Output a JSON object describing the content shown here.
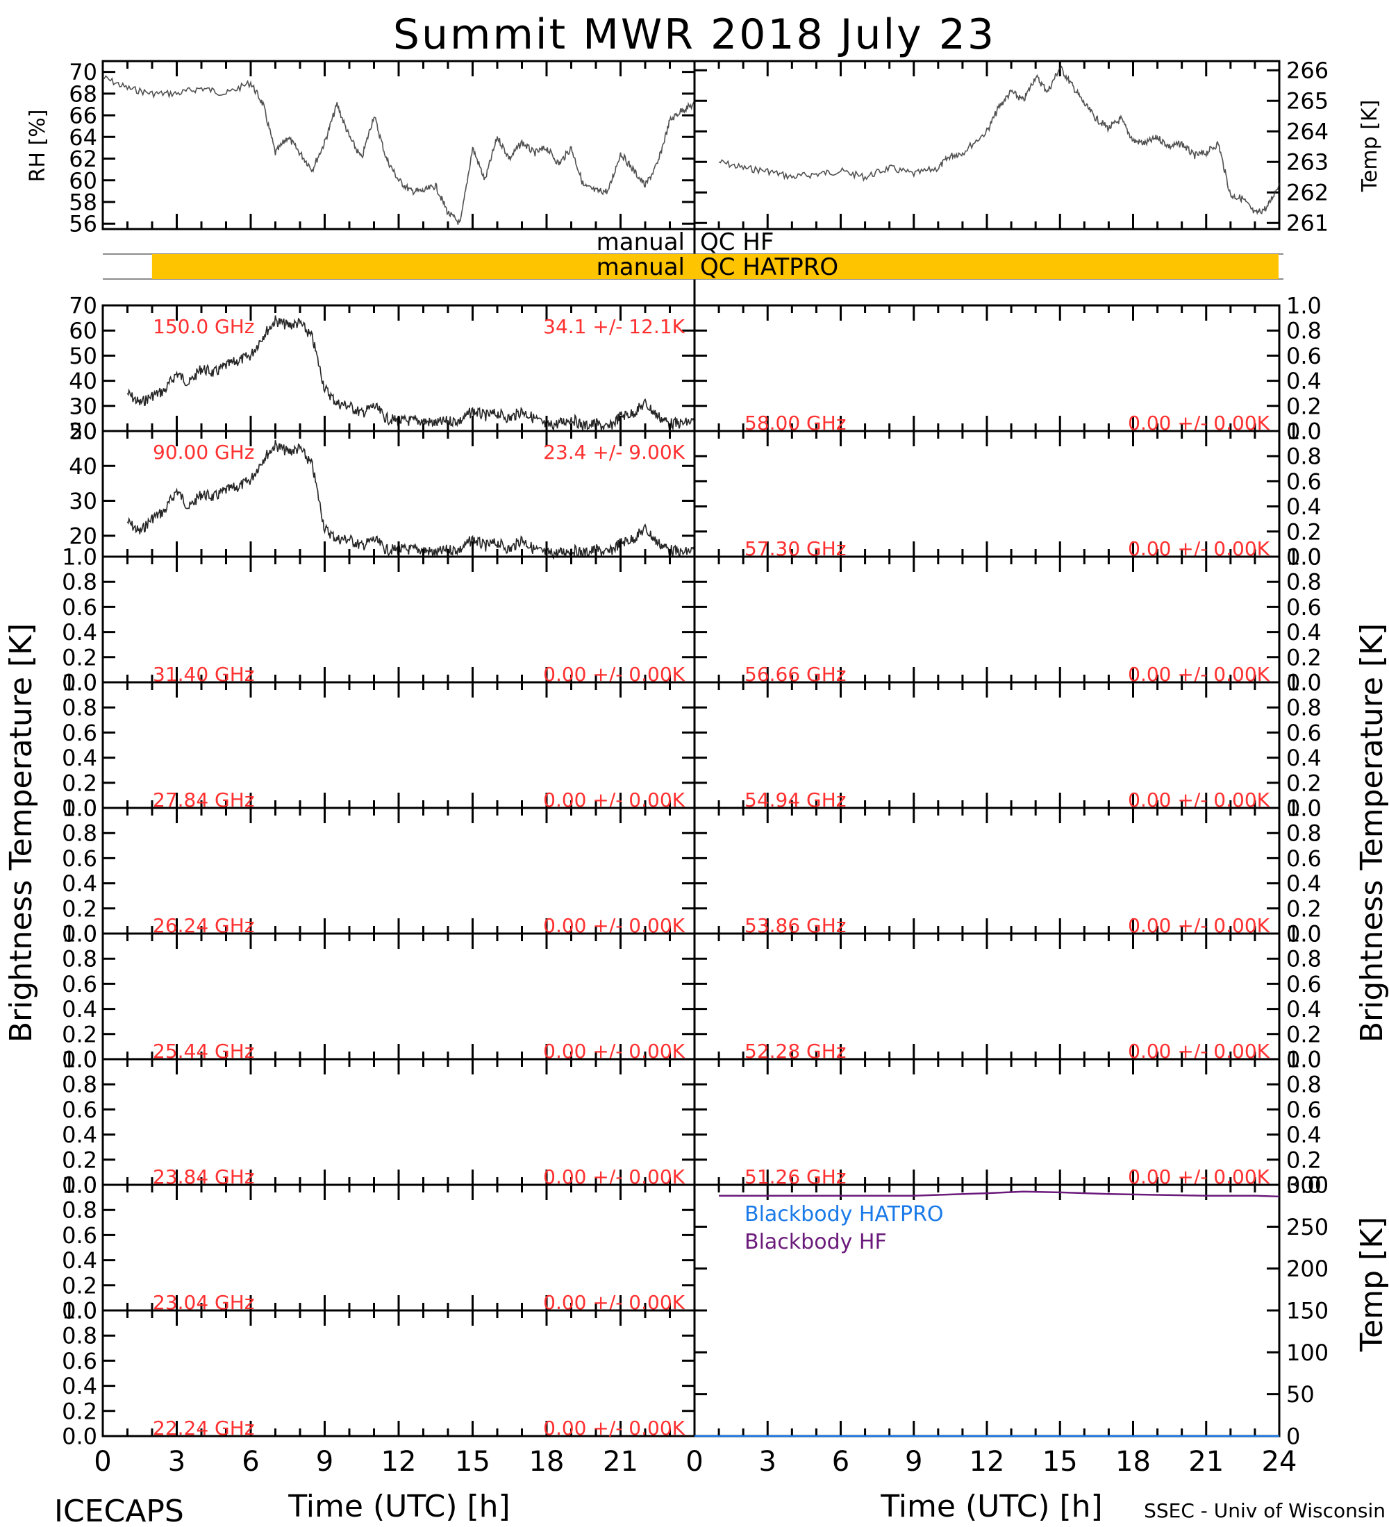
{
  "title": "Summit MWR 2018 July 23",
  "footer": {
    "left": "ICECAPS",
    "right": "SSEC - Univ of Wisconsin",
    "xlabel": "Time (UTC) [h]"
  },
  "left_ylabel": "Brightness Temperature [K]",
  "right_ylabel": "Brightness Temperature [K]",
  "qc": {
    "rows": [
      {
        "left": "manual",
        "right": "QC HF",
        "bar_color": null
      },
      {
        "left": "manual",
        "right": "QC HATPRO",
        "bar_color": "#ffc400"
      }
    ],
    "bar_start_hour": 1.0,
    "bar_end_hour": 23.9
  },
  "colors": {
    "annotation": "#ff3030",
    "data": "#000000",
    "blackbody_hatpro": "#1a7ae8",
    "blackbody_hf": "#6a1a7a",
    "qc_bar": "#ffc400"
  },
  "chart_data": [
    {
      "type": "line",
      "panel": "RH",
      "ylabel": "RH [%]",
      "ylim": [
        55.5,
        71
      ],
      "yticks": [
        "56",
        "58",
        "60",
        "62",
        "64",
        "66",
        "68",
        "70"
      ],
      "x": [
        0,
        1,
        2,
        3,
        4,
        5,
        6,
        6.5,
        7,
        7.5,
        8,
        8.5,
        9,
        9.5,
        10,
        10.5,
        11,
        11.5,
        12,
        12.5,
        13,
        13.5,
        14,
        14.5,
        15,
        15.5,
        16,
        16.5,
        17,
        17.5,
        18,
        18.5,
        19,
        19.5,
        20,
        20.5,
        21,
        21.5,
        22,
        22.5,
        23,
        23.5,
        24
      ],
      "y": [
        69.5,
        68.5,
        68,
        68,
        68.5,
        68,
        69,
        67,
        62.5,
        64,
        62.5,
        61,
        63.5,
        67,
        64,
        62,
        66,
        62,
        60,
        59,
        59,
        59.5,
        57,
        56,
        63,
        60,
        64,
        62,
        63.5,
        62.5,
        63,
        61.5,
        63,
        59.5,
        59,
        59,
        62.5,
        61,
        59.5,
        61.5,
        65.5,
        66.5,
        67
      ]
    },
    {
      "type": "line",
      "panel": "Temp",
      "ylabel": "Temp [K]",
      "ylim": [
        260.8,
        266.3
      ],
      "yticks": [
        "261",
        "262",
        "263",
        "264",
        "265",
        "266"
      ],
      "x": [
        1,
        2,
        3,
        4,
        5,
        6,
        7,
        8,
        9,
        10,
        10.5,
        11,
        12,
        12.5,
        13,
        13.5,
        14,
        14.5,
        15,
        15.5,
        16,
        16.5,
        17,
        17.5,
        18,
        18.5,
        19,
        19.5,
        20,
        20.5,
        21,
        21.5,
        22,
        22.5,
        23,
        23.5,
        24
      ],
      "y": [
        263,
        262.8,
        262.7,
        262.5,
        262.6,
        262.7,
        262.5,
        262.8,
        262.6,
        262.8,
        263.2,
        263.3,
        264,
        264.8,
        265.3,
        265,
        265.8,
        265.3,
        266.1,
        265.5,
        264.9,
        264.4,
        264.1,
        264.4,
        263.7,
        263.6,
        263.8,
        263.5,
        263.6,
        263.2,
        263.3,
        263.6,
        261.9,
        261.8,
        261.3,
        261.5,
        262.3
      ]
    },
    {
      "type": "line",
      "panel": "150.0 GHz",
      "label": "150.0 GHz",
      "stats": "34.1 +/- 12.1K",
      "ylim": [
        20,
        70
      ],
      "yticks": [
        "20",
        "30",
        "40",
        "50",
        "60",
        "70"
      ],
      "x": [
        1,
        1.5,
        2,
        2.5,
        3,
        3.5,
        4,
        4.5,
        5,
        5.5,
        6,
        6.5,
        7,
        7.5,
        8,
        8.5,
        9,
        9.5,
        10,
        10.5,
        11,
        11.5,
        12,
        12.5,
        13,
        13.5,
        14,
        14.5,
        15,
        15.5,
        16,
        16.5,
        17,
        17.5,
        18,
        18.5,
        19,
        19.5,
        20,
        20.5,
        21,
        21.5,
        22,
        22.5,
        23,
        23.5,
        24
      ],
      "y": [
        35,
        31,
        34,
        36,
        43,
        39,
        45,
        43,
        46,
        48,
        50,
        58,
        64,
        62,
        63,
        57,
        37,
        31,
        30,
        27,
        30,
        25,
        24,
        24,
        24,
        23,
        24,
        24,
        28,
        26,
        27,
        25,
        28,
        25,
        22,
        23,
        25,
        22,
        23,
        21,
        26,
        27,
        31,
        26,
        23,
        23,
        24
      ]
    },
    {
      "type": "line",
      "panel": "90.00 GHz",
      "label": "90.00 GHz",
      "stats": "23.4 +/- 9.00K",
      "ylim": [
        14,
        50
      ],
      "yticks": [
        "20",
        "30",
        "40",
        "50"
      ],
      "x": [
        1,
        1.5,
        2,
        2.5,
        3,
        3.5,
        4,
        4.5,
        5,
        5.5,
        6,
        6.5,
        7,
        7.5,
        8,
        8.5,
        9,
        9.5,
        10,
        10.5,
        11,
        11.5,
        12,
        12.5,
        13,
        13.5,
        14,
        14.5,
        15,
        15.5,
        16,
        16.5,
        17,
        17.5,
        18,
        18.5,
        19,
        19.5,
        20,
        20.5,
        21,
        21.5,
        22,
        22.5,
        23,
        23.5,
        24
      ],
      "y": [
        24,
        21,
        25,
        27,
        33,
        28,
        32,
        31,
        33,
        34,
        36,
        42,
        46,
        44,
        45,
        40,
        22,
        19,
        19,
        17,
        19,
        16,
        16,
        16,
        16,
        15,
        16,
        16,
        19,
        17,
        18,
        16,
        19,
        16,
        15,
        15,
        16,
        15,
        16,
        15,
        18,
        19,
        22,
        18,
        16,
        15,
        16
      ]
    },
    {
      "type": "line",
      "panel": "31.40 GHz",
      "label": "31.40 GHz",
      "stats": "0.00 +/- 0.00K",
      "ylim": [
        0,
        1
      ]
    },
    {
      "type": "line",
      "panel": "27.84 GHz",
      "label": "27.84 GHz",
      "stats": "0.00 +/- 0.00K",
      "ylim": [
        0,
        1
      ]
    },
    {
      "type": "line",
      "panel": "26.24 GHz",
      "label": "26.24 GHz",
      "stats": "0.00 +/- 0.00K",
      "ylim": [
        0,
        1
      ]
    },
    {
      "type": "line",
      "panel": "25.44 GHz",
      "label": "25.44 GHz",
      "stats": "0.00 +/- 0.00K",
      "ylim": [
        0,
        1
      ]
    },
    {
      "type": "line",
      "panel": "23.84 GHz",
      "label": "23.84 GHz",
      "stats": "0.00 +/- 0.00K",
      "ylim": [
        0,
        1
      ]
    },
    {
      "type": "line",
      "panel": "23.04 GHz",
      "label": "23.04 GHz",
      "stats": "0.00 +/- 0.00K",
      "ylim": [
        0,
        1
      ]
    },
    {
      "type": "line",
      "panel": "22.24 GHz",
      "label": "22.24 GHz",
      "stats": "0.00 +/- 0.00K",
      "ylim": [
        0,
        1
      ]
    },
    {
      "type": "line",
      "panel": "58.00 GHz",
      "label": "58.00 GHz",
      "stats": "0.00 +/- 0.00K",
      "ylim": [
        0,
        1
      ]
    },
    {
      "type": "line",
      "panel": "57.30 GHz",
      "label": "57.30 GHz",
      "stats": "0.00 +/- 0.00K",
      "ylim": [
        0,
        1
      ]
    },
    {
      "type": "line",
      "panel": "56.66 GHz",
      "label": "56.66 GHz",
      "stats": "0.00 +/- 0.00K",
      "ylim": [
        0,
        1
      ]
    },
    {
      "type": "line",
      "panel": "54.94 GHz",
      "label": "54.94 GHz",
      "stats": "0.00 +/- 0.00K",
      "ylim": [
        0,
        1
      ]
    },
    {
      "type": "line",
      "panel": "53.86 GHz",
      "label": "53.86 GHz",
      "stats": "0.00 +/- 0.00K",
      "ylim": [
        0,
        1
      ]
    },
    {
      "type": "line",
      "panel": "52.28 GHz",
      "label": "52.28 GHz",
      "stats": "0.00 +/- 0.00K",
      "ylim": [
        0,
        1
      ]
    },
    {
      "type": "line",
      "panel": "51.26 GHz",
      "label": "51.26 GHz",
      "stats": "0.00 +/- 0.00K",
      "ylim": [
        0,
        1
      ]
    },
    {
      "type": "line",
      "panel": "Blackbody",
      "ylabel": "Temp [K]",
      "ylim": [
        0,
        300
      ],
      "yticks": [
        "0",
        "50",
        "100",
        "150",
        "200",
        "250",
        "300"
      ],
      "series": [
        {
          "name": "Blackbody HATPRO",
          "x": [
            0,
            24
          ],
          "y": [
            0,
            0
          ]
        },
        {
          "name": "Blackbody HF",
          "x": [
            1,
            3,
            6,
            9,
            12,
            13.5,
            15,
            17,
            19,
            21,
            23,
            24
          ],
          "y": [
            287,
            287,
            287,
            287,
            290,
            292,
            291,
            289,
            288,
            287,
            287,
            286
          ]
        }
      ]
    }
  ],
  "xticks": [
    "0",
    "3",
    "6",
    "9",
    "12",
    "15",
    "18",
    "21",
    "24"
  ],
  "small_yticks": [
    "0.0",
    "0.2",
    "0.4",
    "0.6",
    "0.8",
    "1.0"
  ]
}
